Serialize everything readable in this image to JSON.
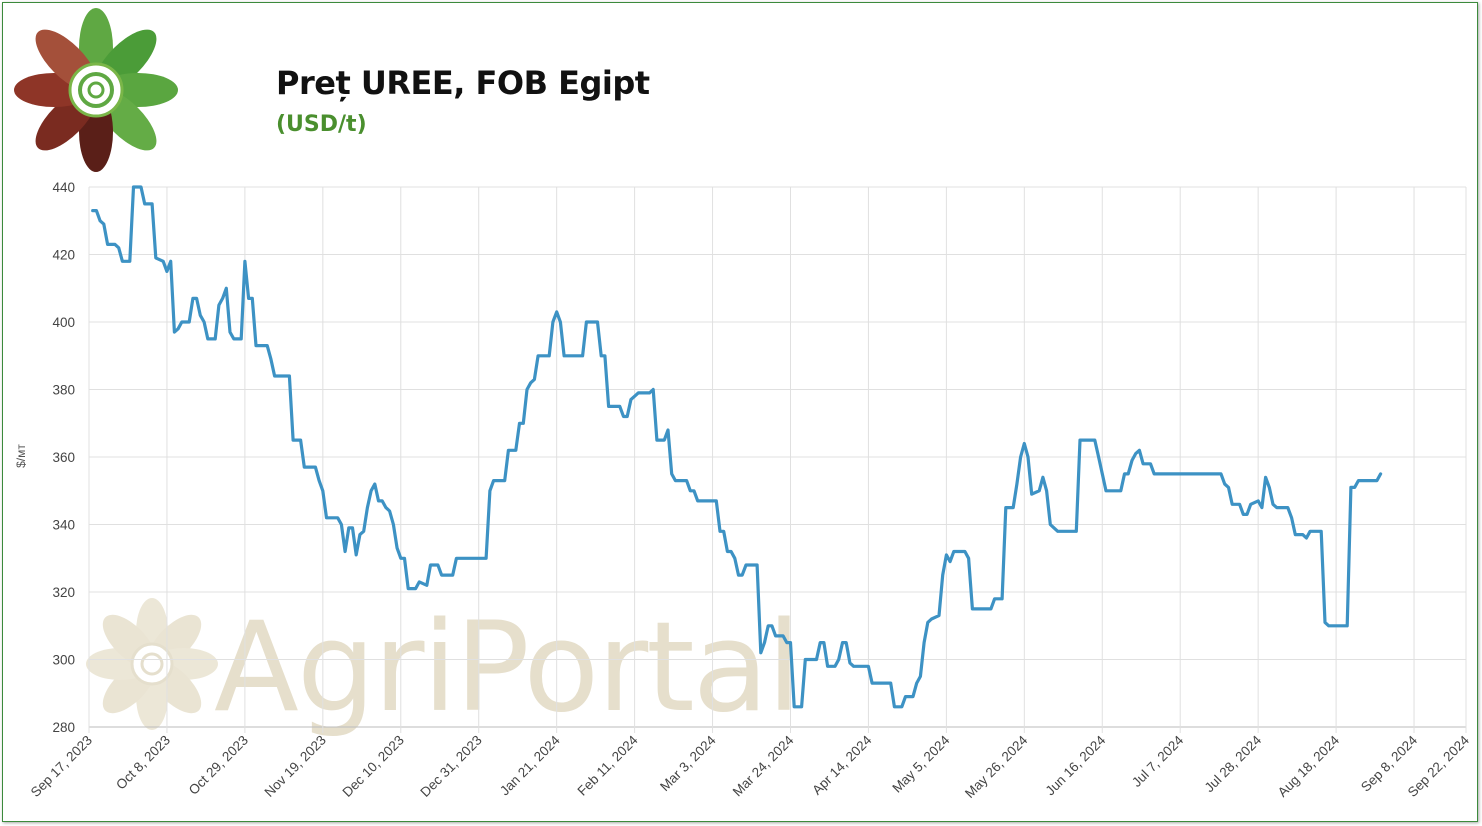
{
  "header": {
    "title": "Preț UREE, FOB Egipt",
    "subtitle": "(USD/t)"
  },
  "watermark_text": "AgriPortal",
  "colors": {
    "line": "#3d92c4",
    "grid": "#e0e0e0",
    "title_green": "#4a8f2e"
  },
  "chart_data": {
    "type": "line",
    "title": "Preț UREE, FOB Egipt",
    "subtitle": "(USD/t)",
    "xlabel": "",
    "ylabel": "$/мт",
    "ylim": [
      280,
      440
    ],
    "yticks": [
      280,
      300,
      320,
      340,
      360,
      380,
      400,
      420,
      440
    ],
    "xlim": [
      "2023-09-17",
      "2024-09-22"
    ],
    "xticks": [
      {
        "date": "2023-09-17",
        "label": "Sep 17, 2023"
      },
      {
        "date": "2023-10-08",
        "label": "Oct 8, 2023"
      },
      {
        "date": "2023-10-29",
        "label": "Oct 29, 2023"
      },
      {
        "date": "2023-11-19",
        "label": "Nov 19, 2023"
      },
      {
        "date": "2023-12-10",
        "label": "Dec 10, 2023"
      },
      {
        "date": "2023-12-31",
        "label": "Dec 31, 2023"
      },
      {
        "date": "2024-01-21",
        "label": "Jan 21, 2024"
      },
      {
        "date": "2024-02-11",
        "label": "Feb 11, 2024"
      },
      {
        "date": "2024-03-03",
        "label": "Mar 3, 2024"
      },
      {
        "date": "2024-03-24",
        "label": "Mar 24, 2024"
      },
      {
        "date": "2024-04-14",
        "label": "Apr 14, 2024"
      },
      {
        "date": "2024-05-05",
        "label": "May 5, 2024"
      },
      {
        "date": "2024-05-26",
        "label": "May 26, 2024"
      },
      {
        "date": "2024-06-16",
        "label": "Jun 16, 2024"
      },
      {
        "date": "2024-07-07",
        "label": "Jul 7, 2024"
      },
      {
        "date": "2024-07-28",
        "label": "Jul 28, 2024"
      },
      {
        "date": "2024-08-18",
        "label": "Aug 18, 2024"
      },
      {
        "date": "2024-09-08",
        "label": "Sep 8, 2024"
      },
      {
        "date": "2024-09-22",
        "label": "Sep 22, 2024"
      }
    ],
    "grid": true,
    "legend": "none",
    "series": [
      {
        "points": [
          [
            "2023-09-18",
            433
          ],
          [
            "2023-09-19",
            433
          ],
          [
            "2023-09-20",
            430
          ],
          [
            "2023-09-21",
            429
          ],
          [
            "2023-09-22",
            423
          ],
          [
            "2023-09-24",
            423
          ],
          [
            "2023-09-25",
            422
          ],
          [
            "2023-09-26",
            418
          ],
          [
            "2023-09-28",
            418
          ],
          [
            "2023-09-29",
            440
          ],
          [
            "2023-10-01",
            440
          ],
          [
            "2023-10-02",
            435
          ],
          [
            "2023-10-04",
            435
          ],
          [
            "2023-10-05",
            419
          ],
          [
            "2023-10-07",
            418
          ],
          [
            "2023-10-08",
            415
          ],
          [
            "2023-10-09",
            418
          ],
          [
            "2023-10-10",
            397
          ],
          [
            "2023-10-11",
            398
          ],
          [
            "2023-10-12",
            400
          ],
          [
            "2023-10-14",
            400
          ],
          [
            "2023-10-15",
            407
          ],
          [
            "2023-10-16",
            407
          ],
          [
            "2023-10-17",
            402
          ],
          [
            "2023-10-18",
            400
          ],
          [
            "2023-10-19",
            395
          ],
          [
            "2023-10-21",
            395
          ],
          [
            "2023-10-22",
            405
          ],
          [
            "2023-10-23",
            407
          ],
          [
            "2023-10-24",
            410
          ],
          [
            "2023-10-25",
            397
          ],
          [
            "2023-10-26",
            395
          ],
          [
            "2023-10-28",
            395
          ],
          [
            "2023-10-29",
            418
          ],
          [
            "2023-10-30",
            407
          ],
          [
            "2023-10-31",
            407
          ],
          [
            "2023-11-01",
            393
          ],
          [
            "2023-11-04",
            393
          ],
          [
            "2023-11-05",
            389
          ],
          [
            "2023-11-06",
            384
          ],
          [
            "2023-11-10",
            384
          ],
          [
            "2023-11-11",
            365
          ],
          [
            "2023-11-13",
            365
          ],
          [
            "2023-11-14",
            357
          ],
          [
            "2023-11-17",
            357
          ],
          [
            "2023-11-18",
            353
          ],
          [
            "2023-11-19",
            350
          ],
          [
            "2023-11-20",
            342
          ],
          [
            "2023-11-23",
            342
          ],
          [
            "2023-11-24",
            340
          ],
          [
            "2023-11-25",
            332
          ],
          [
            "2023-11-26",
            339
          ],
          [
            "2023-11-27",
            339
          ],
          [
            "2023-11-28",
            331
          ],
          [
            "2023-11-29",
            337
          ],
          [
            "2023-11-30",
            338
          ],
          [
            "2023-12-01",
            345
          ],
          [
            "2023-12-02",
            350
          ],
          [
            "2023-12-03",
            352
          ],
          [
            "2023-12-04",
            347
          ],
          [
            "2023-12-05",
            347
          ],
          [
            "2023-12-06",
            345
          ],
          [
            "2023-12-07",
            344
          ],
          [
            "2023-12-08",
            340
          ],
          [
            "2023-12-09",
            333
          ],
          [
            "2023-12-10",
            330
          ],
          [
            "2023-12-11",
            330
          ],
          [
            "2023-12-12",
            321
          ],
          [
            "2023-12-14",
            321
          ],
          [
            "2023-12-15",
            323
          ],
          [
            "2023-12-17",
            322
          ],
          [
            "2023-12-18",
            328
          ],
          [
            "2023-12-20",
            328
          ],
          [
            "2023-12-21",
            325
          ],
          [
            "2023-12-24",
            325
          ],
          [
            "2023-12-25",
            330
          ],
          [
            "2024-01-02",
            330
          ],
          [
            "2024-01-03",
            350
          ],
          [
            "2024-01-04",
            353
          ],
          [
            "2024-01-07",
            353
          ],
          [
            "2024-01-08",
            362
          ],
          [
            "2024-01-10",
            362
          ],
          [
            "2024-01-11",
            370
          ],
          [
            "2024-01-12",
            370
          ],
          [
            "2024-01-13",
            380
          ],
          [
            "2024-01-14",
            382
          ],
          [
            "2024-01-15",
            383
          ],
          [
            "2024-01-16",
            390
          ],
          [
            "2024-01-19",
            390
          ],
          [
            "2024-01-20",
            400
          ],
          [
            "2024-01-21",
            403
          ],
          [
            "2024-01-22",
            400
          ],
          [
            "2024-01-23",
            390
          ],
          [
            "2024-01-28",
            390
          ],
          [
            "2024-01-29",
            400
          ],
          [
            "2024-02-01",
            400
          ],
          [
            "2024-02-02",
            390
          ],
          [
            "2024-02-03",
            390
          ],
          [
            "2024-02-04",
            375
          ],
          [
            "2024-02-07",
            375
          ],
          [
            "2024-02-08",
            372
          ],
          [
            "2024-02-09",
            372
          ],
          [
            "2024-02-10",
            377
          ],
          [
            "2024-02-12",
            379
          ],
          [
            "2024-02-15",
            379
          ],
          [
            "2024-02-16",
            380
          ],
          [
            "2024-02-17",
            365
          ],
          [
            "2024-02-19",
            365
          ],
          [
            "2024-02-20",
            368
          ],
          [
            "2024-02-21",
            355
          ],
          [
            "2024-02-22",
            353
          ],
          [
            "2024-02-25",
            353
          ],
          [
            "2024-02-26",
            350
          ],
          [
            "2024-02-27",
            350
          ],
          [
            "2024-02-28",
            347
          ],
          [
            "2024-03-04",
            347
          ],
          [
            "2024-03-05",
            338
          ],
          [
            "2024-03-06",
            338
          ],
          [
            "2024-03-07",
            332
          ],
          [
            "2024-03-08",
            332
          ],
          [
            "2024-03-09",
            330
          ],
          [
            "2024-03-10",
            325
          ],
          [
            "2024-03-11",
            325
          ],
          [
            "2024-03-12",
            328
          ],
          [
            "2024-03-15",
            328
          ],
          [
            "2024-03-16",
            302
          ],
          [
            "2024-03-17",
            305
          ],
          [
            "2024-03-18",
            310
          ],
          [
            "2024-03-19",
            310
          ],
          [
            "2024-03-20",
            307
          ],
          [
            "2024-03-22",
            307
          ],
          [
            "2024-03-23",
            305
          ],
          [
            "2024-03-24",
            305
          ],
          [
            "2024-03-25",
            286
          ],
          [
            "2024-03-27",
            286
          ],
          [
            "2024-03-28",
            300
          ],
          [
            "2024-03-31",
            300
          ],
          [
            "2024-04-01",
            305
          ],
          [
            "2024-04-02",
            305
          ],
          [
            "2024-04-03",
            298
          ],
          [
            "2024-04-05",
            298
          ],
          [
            "2024-04-06",
            300
          ],
          [
            "2024-04-07",
            305
          ],
          [
            "2024-04-08",
            305
          ],
          [
            "2024-04-09",
            299
          ],
          [
            "2024-04-10",
            298
          ],
          [
            "2024-04-14",
            298
          ],
          [
            "2024-04-15",
            293
          ],
          [
            "2024-04-20",
            293
          ],
          [
            "2024-04-21",
            286
          ],
          [
            "2024-04-23",
            286
          ],
          [
            "2024-04-24",
            289
          ],
          [
            "2024-04-26",
            289
          ],
          [
            "2024-04-27",
            293
          ],
          [
            "2024-04-28",
            295
          ],
          [
            "2024-04-29",
            305
          ],
          [
            "2024-04-30",
            311
          ],
          [
            "2024-05-01",
            312
          ],
          [
            "2024-05-03",
            313
          ],
          [
            "2024-05-04",
            325
          ],
          [
            "2024-05-05",
            331
          ],
          [
            "2024-05-06",
            329
          ],
          [
            "2024-05-07",
            332
          ],
          [
            "2024-05-10",
            332
          ],
          [
            "2024-05-11",
            330
          ],
          [
            "2024-05-12",
            315
          ],
          [
            "2024-05-17",
            315
          ],
          [
            "2024-05-18",
            318
          ],
          [
            "2024-05-20",
            318
          ],
          [
            "2024-05-21",
            345
          ],
          [
            "2024-05-23",
            345
          ],
          [
            "2024-05-24",
            352
          ],
          [
            "2024-05-25",
            360
          ],
          [
            "2024-05-26",
            364
          ],
          [
            "2024-05-27",
            360
          ],
          [
            "2024-05-28",
            349
          ],
          [
            "2024-05-30",
            350
          ],
          [
            "2024-05-31",
            354
          ],
          [
            "2024-06-01",
            350
          ],
          [
            "2024-06-02",
            340
          ],
          [
            "2024-06-03",
            339
          ],
          [
            "2024-06-04",
            338
          ],
          [
            "2024-06-09",
            338
          ],
          [
            "2024-06-10",
            365
          ],
          [
            "2024-06-14",
            365
          ],
          [
            "2024-06-15",
            360
          ],
          [
            "2024-06-16",
            355
          ],
          [
            "2024-06-17",
            350
          ],
          [
            "2024-06-21",
            350
          ],
          [
            "2024-06-22",
            355
          ],
          [
            "2024-06-23",
            355
          ],
          [
            "2024-06-24",
            359
          ],
          [
            "2024-06-25",
            361
          ],
          [
            "2024-06-26",
            362
          ],
          [
            "2024-06-27",
            358
          ],
          [
            "2024-06-29",
            358
          ],
          [
            "2024-06-30",
            355
          ],
          [
            "2024-07-04",
            355
          ],
          [
            "2024-07-18",
            355
          ],
          [
            "2024-07-19",
            352
          ],
          [
            "2024-07-20",
            351
          ],
          [
            "2024-07-21",
            346
          ],
          [
            "2024-07-23",
            346
          ],
          [
            "2024-07-24",
            343
          ],
          [
            "2024-07-25",
            343
          ],
          [
            "2024-07-26",
            346
          ],
          [
            "2024-07-28",
            347
          ],
          [
            "2024-07-29",
            345
          ],
          [
            "2024-07-30",
            354
          ],
          [
            "2024-07-31",
            351
          ],
          [
            "2024-08-01",
            346
          ],
          [
            "2024-08-02",
            345
          ],
          [
            "2024-08-05",
            345
          ],
          [
            "2024-08-06",
            342
          ],
          [
            "2024-08-07",
            337
          ],
          [
            "2024-08-09",
            337
          ],
          [
            "2024-08-10",
            336
          ],
          [
            "2024-08-11",
            338
          ],
          [
            "2024-08-14",
            338
          ],
          [
            "2024-08-15",
            311
          ],
          [
            "2024-08-16",
            310
          ],
          [
            "2024-08-21",
            310
          ],
          [
            "2024-08-22",
            351
          ],
          [
            "2024-08-23",
            351
          ],
          [
            "2024-08-24",
            353
          ],
          [
            "2024-08-29",
            353
          ],
          [
            "2024-08-30",
            355
          ]
        ]
      }
    ]
  }
}
